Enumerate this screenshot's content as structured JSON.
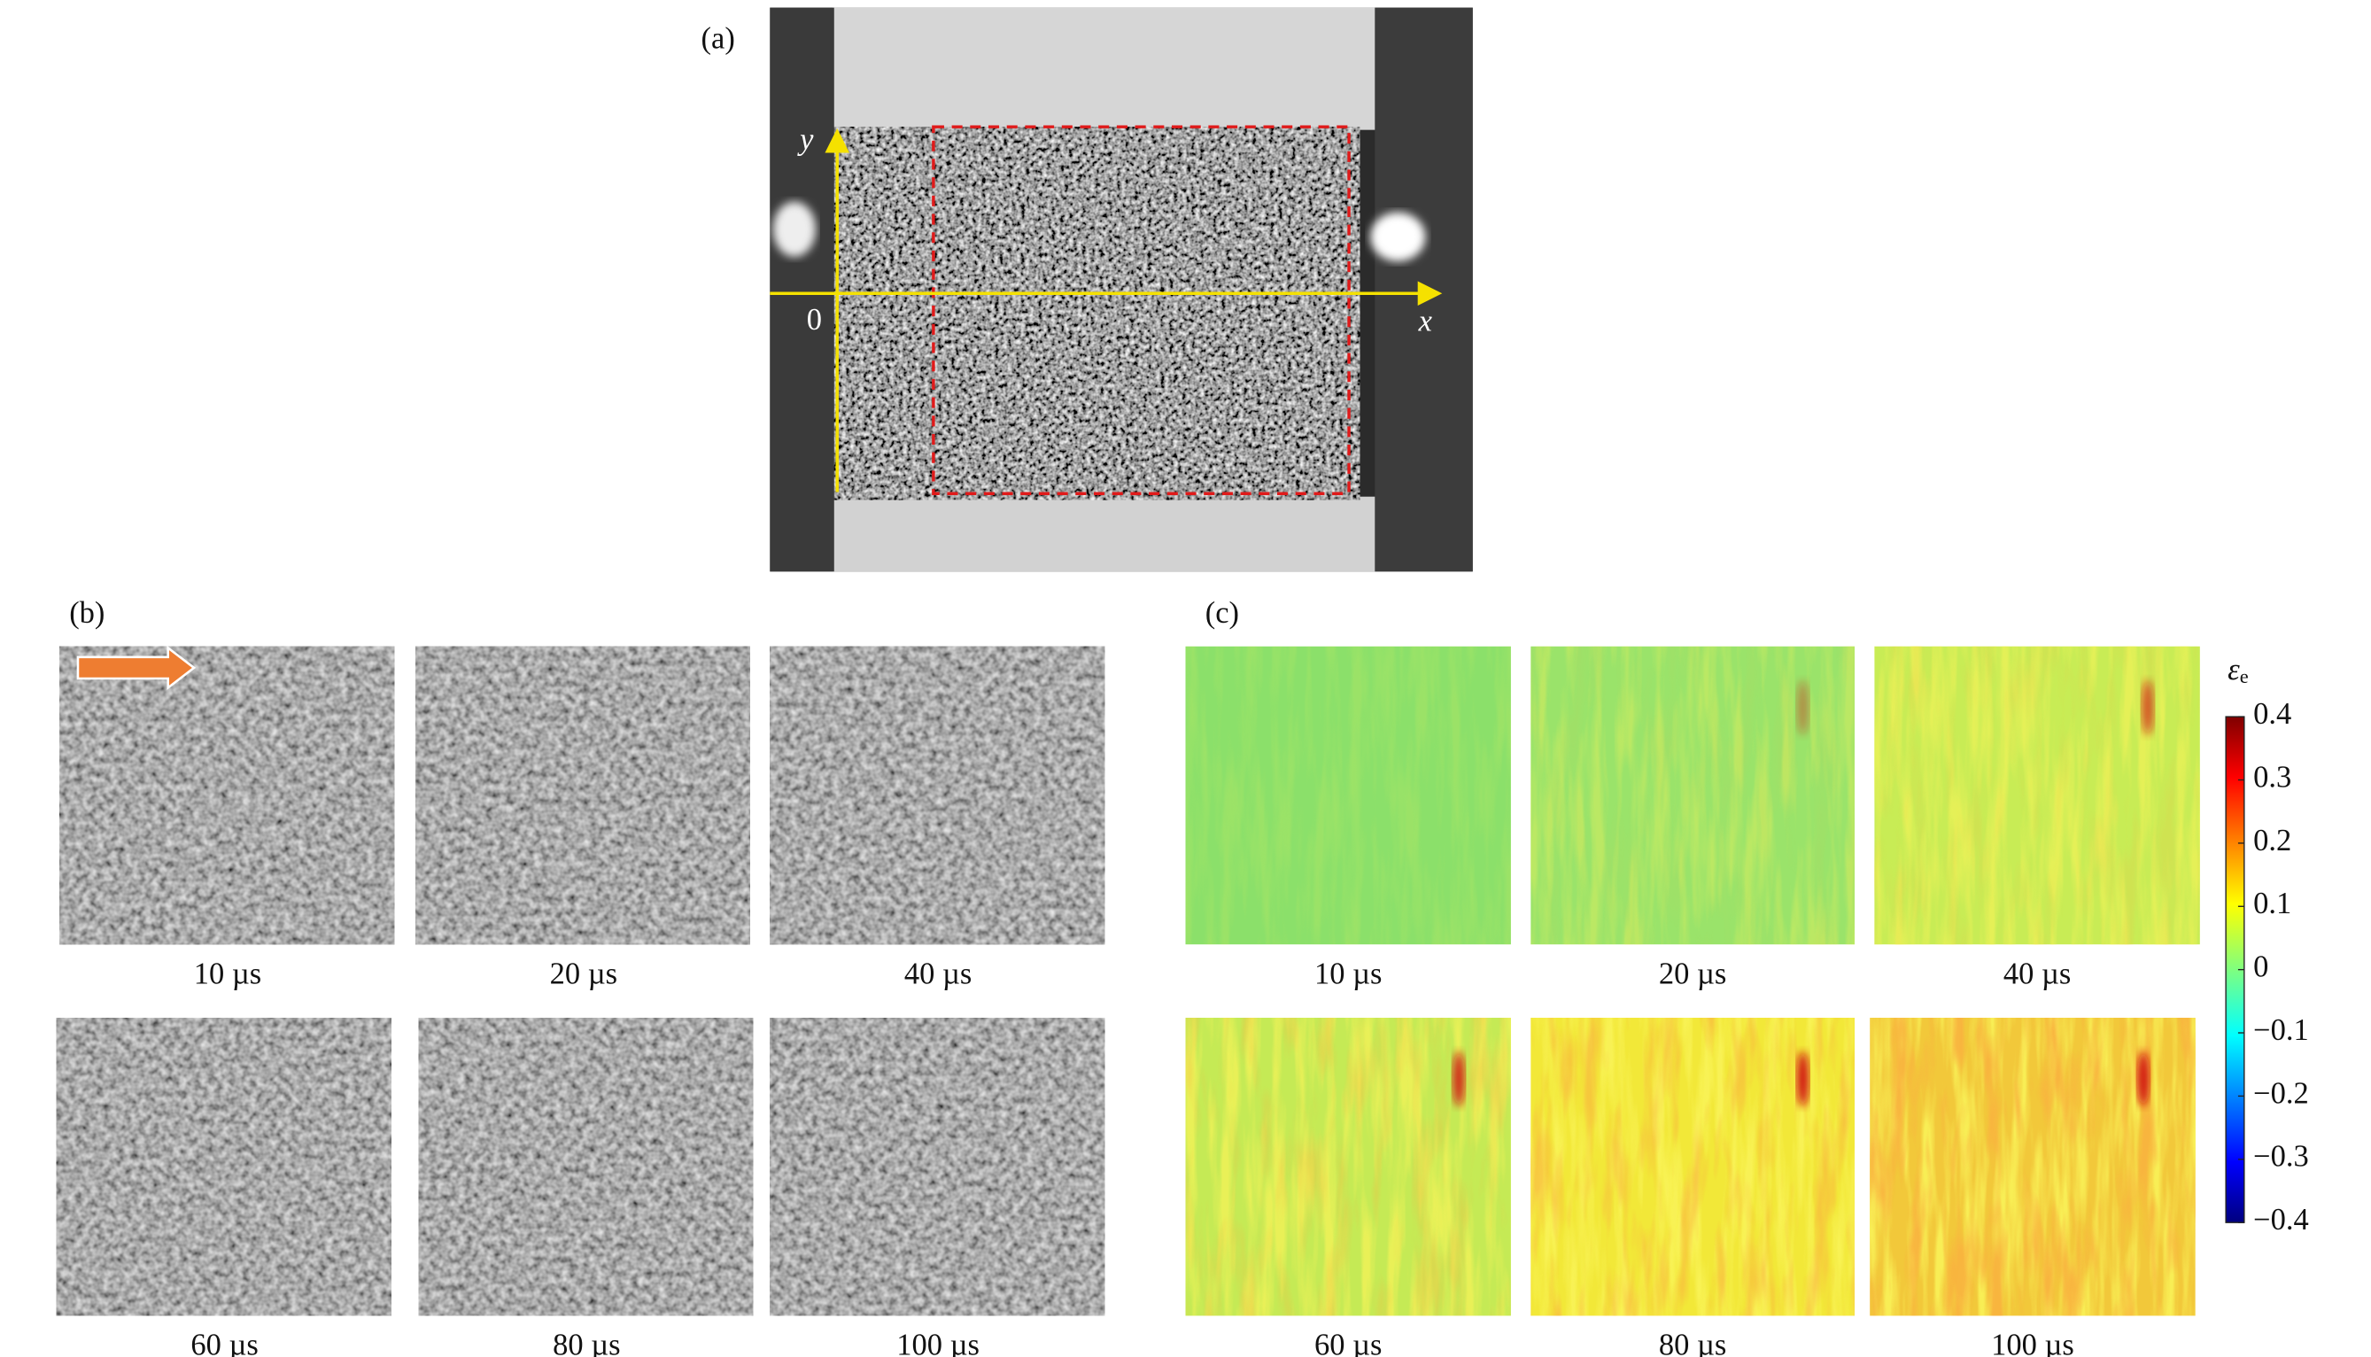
{
  "panels": {
    "a": {
      "label": "(a)",
      "x_axis": "x",
      "y_axis": "y",
      "origin": "0"
    },
    "b": {
      "label": "(b)",
      "frames": [
        "10 µs",
        "20 µs",
        "40 µs",
        "60 µs",
        "80 µs",
        "100 µs"
      ]
    },
    "c": {
      "label": "(c)",
      "frames": [
        "10 µs",
        "20 µs",
        "40 µs",
        "60 µs",
        "80 µs",
        "100 µs"
      ],
      "colorbar": {
        "symbol": "ε",
        "subscript": "e",
        "lim": [
          -0.4,
          0.4
        ],
        "ticks": [
          0.4,
          0.3,
          0.2,
          0.1,
          0,
          {
            "value": -0.1,
            "label": "−0.1"
          },
          {
            "value": -0.2,
            "label": "−0.2"
          },
          {
            "value": -0.3,
            "label": "−0.3"
          },
          {
            "value": -0.4,
            "label": "−0.4"
          }
        ]
      }
    }
  }
}
